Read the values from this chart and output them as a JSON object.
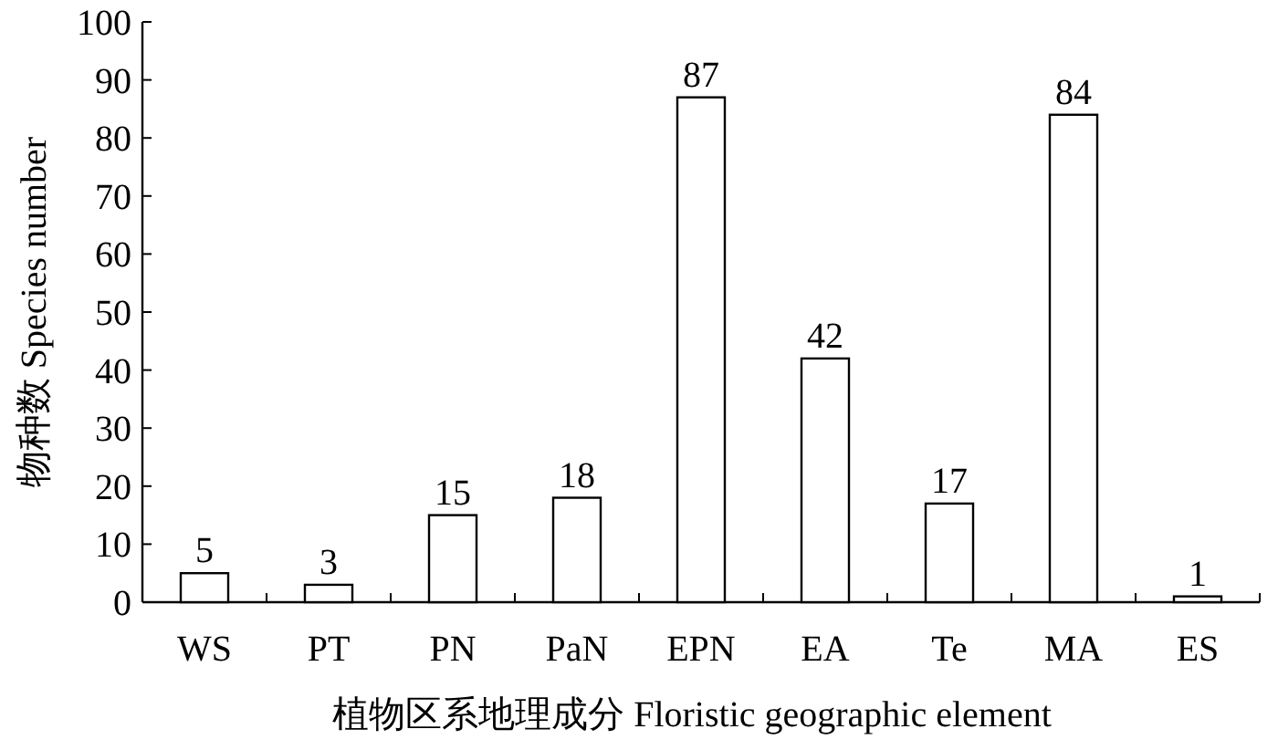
{
  "chart_data": {
    "type": "bar",
    "xlabel": "植物区系地理成分 Floristic geographic element",
    "ylabel": "物种数 Species number",
    "categories": [
      "WS",
      "PT",
      "PN",
      "PaN",
      "EPN",
      "EA",
      "Te",
      "MA",
      "ES"
    ],
    "values": [
      5,
      3,
      15,
      18,
      87,
      42,
      17,
      84,
      1
    ],
    "color": "#ffffff",
    "data_labels": true,
    "ylim": [
      0,
      100
    ],
    "yticks": [
      0,
      10,
      20,
      30,
      40,
      50,
      60,
      70,
      80,
      90,
      100
    ]
  }
}
